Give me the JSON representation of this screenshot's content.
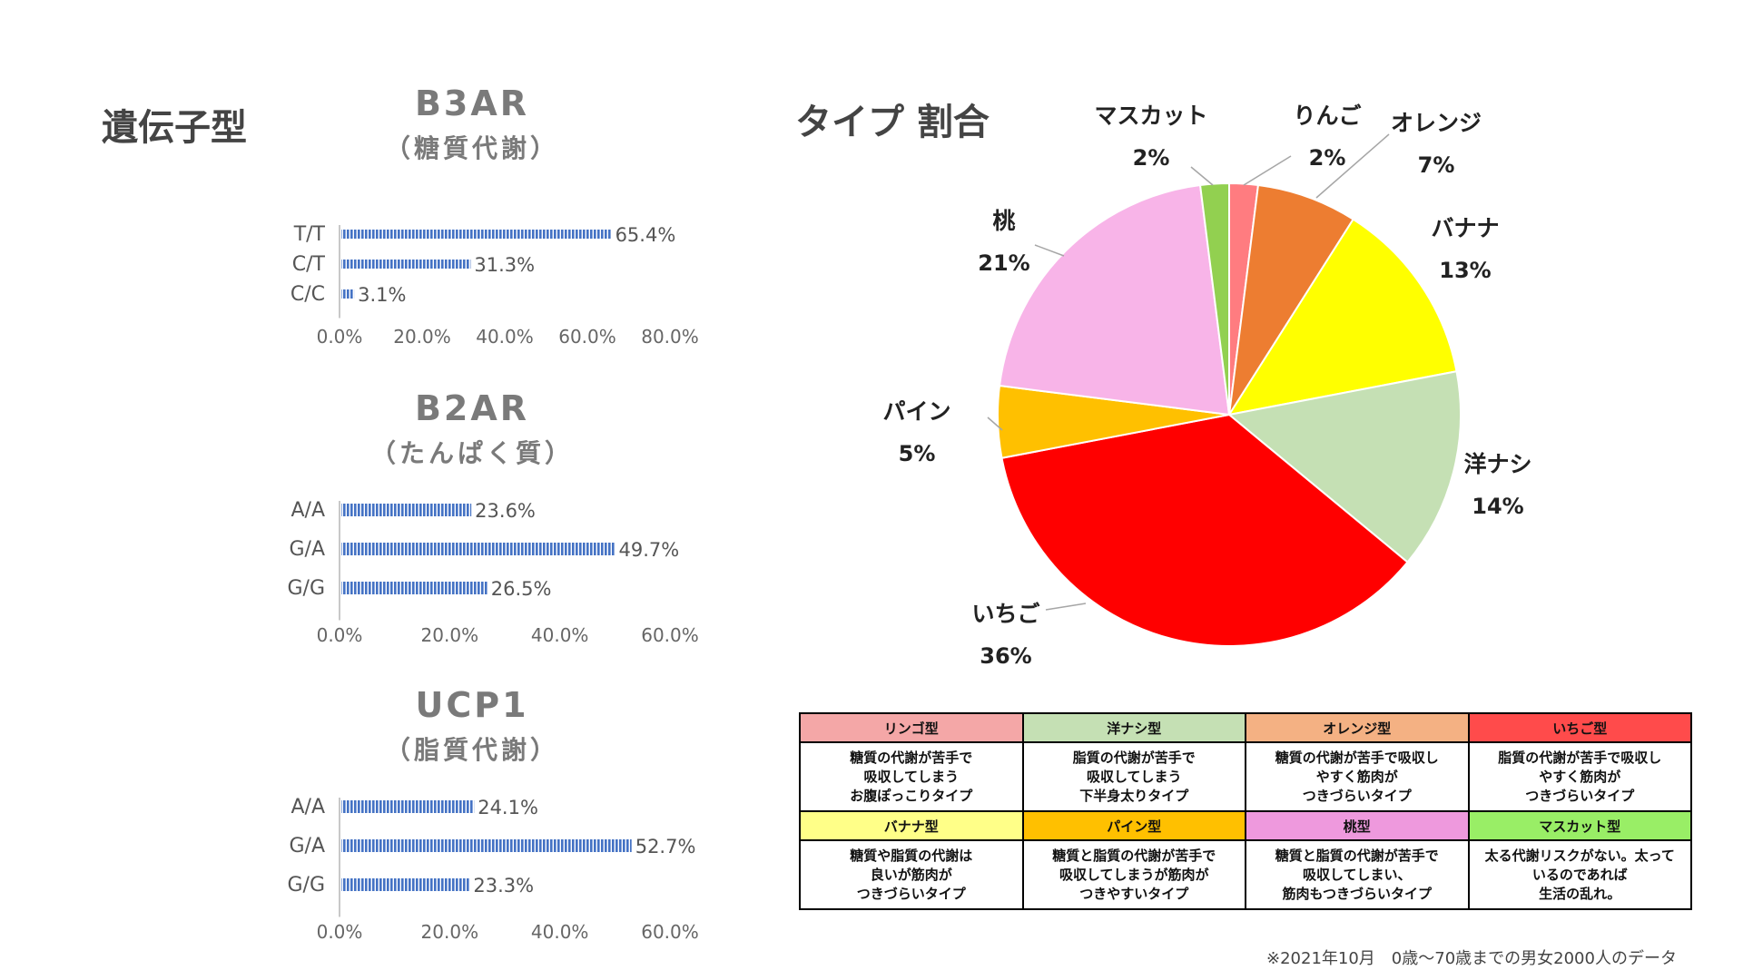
{
  "section_genotype": "遺伝子型",
  "section_type_ratio": "タイプ 割合",
  "bar_charts": [
    {
      "title": "B3AR",
      "subtitle": "（糖質代謝）",
      "categories": [
        "T/T",
        "C/T",
        "C/C"
      ],
      "labels": [
        "65.4%",
        "31.3%",
        "3.1%"
      ],
      "ticks": [
        "0.0%",
        "20.0%",
        "40.0%",
        "60.0%",
        "80.0%"
      ]
    },
    {
      "title": "B2AR",
      "subtitle": "（たんぱく質）",
      "categories": [
        "A/A",
        "G/A",
        "G/G"
      ],
      "labels": [
        "23.6%",
        "49.7%",
        "26.5%"
      ],
      "ticks": [
        "0.0%",
        "20.0%",
        "40.0%",
        "60.0%"
      ]
    },
    {
      "title": "UCP1",
      "subtitle": "（脂質代謝）",
      "categories": [
        "A/A",
        "G/A",
        "G/G"
      ],
      "labels": [
        "24.1%",
        "52.7%",
        "23.3%"
      ],
      "ticks": [
        "0.0%",
        "20.0%",
        "40.0%",
        "60.0%"
      ]
    }
  ],
  "chart_data": [
    {
      "type": "bar",
      "orientation": "horizontal",
      "title": "B3AR",
      "subtitle": "（糖質代謝）",
      "categories": [
        "T/T",
        "C/T",
        "C/C"
      ],
      "values": [
        65.4,
        31.3,
        3.1
      ],
      "xlim": [
        0,
        80
      ],
      "bar_color": "#4472c4"
    },
    {
      "type": "bar",
      "orientation": "horizontal",
      "title": "B2AR",
      "subtitle": "（たんぱく質）",
      "categories": [
        "A/A",
        "G/A",
        "G/G"
      ],
      "values": [
        23.6,
        49.7,
        26.5
      ],
      "xlim": [
        0,
        60
      ],
      "bar_color": "#4472c4"
    },
    {
      "type": "bar",
      "orientation": "horizontal",
      "title": "UCP1",
      "subtitle": "（脂質代謝）",
      "categories": [
        "A/A",
        "G/A",
        "G/G"
      ],
      "values": [
        24.1,
        52.7,
        23.3
      ],
      "xlim": [
        0,
        60
      ],
      "bar_color": "#4472c4"
    },
    {
      "type": "pie",
      "title": "タイプ 割合",
      "slices": [
        {
          "name": "りんご",
          "value": 2,
          "label": "2%",
          "color": "#ff7c80"
        },
        {
          "name": "オレンジ",
          "value": 7,
          "label": "7%",
          "color": "#ed7d31"
        },
        {
          "name": "バナナ",
          "value": 13,
          "label": "13%",
          "color": "#ffff00"
        },
        {
          "name": "洋ナシ",
          "value": 14,
          "label": "14%",
          "color": "#c5e0b4"
        },
        {
          "name": "いちご",
          "value": 36,
          "label": "36%",
          "color": "#ff0000"
        },
        {
          "name": "パイン",
          "value": 5,
          "label": "5%",
          "color": "#ffc000"
        },
        {
          "name": "桃",
          "value": 21,
          "label": "21%",
          "color": "#f8b4e8"
        },
        {
          "name": "マスカット",
          "value": 2,
          "label": "2%",
          "color": "#92d050"
        }
      ]
    }
  ],
  "legend_table": {
    "rows": [
      {
        "heads": [
          {
            "label": "リンゴ型",
            "color": "#f4a7a7"
          },
          {
            "label": "洋ナシ型",
            "color": "#c5e0b4"
          },
          {
            "label": "オレンジ型",
            "color": "#f4b183"
          },
          {
            "label": "いちご型",
            "color": "#ff4b4b"
          }
        ],
        "descs": [
          "糖質の代謝が苦手で\n吸収してしまう\nお腹ぽっこりタイプ",
          "脂質の代謝が苦手で\n吸収してしまう\n下半身太りタイプ",
          "糖質の代謝が苦手で吸収し\nやすく筋肉が\nつきづらいタイプ",
          "脂質の代謝が苦手で吸収し\nやすく筋肉が\nつきづらいタイプ"
        ]
      },
      {
        "heads": [
          {
            "label": "バナナ型",
            "color": "#ffff88"
          },
          {
            "label": "パイン型",
            "color": "#ffc000"
          },
          {
            "label": "桃型",
            "color": "#ee99dd"
          },
          {
            "label": "マスカット型",
            "color": "#99ee66"
          }
        ],
        "descs": [
          "糖質や脂質の代謝は\n良いが筋肉が\nつきづらいタイプ",
          "糖質と脂質の代謝が苦手で\n吸収してしまうが筋肉が\nつきやすいタイプ",
          "糖質と脂質の代謝が苦手で\n吸収してしまい、\n筋肉もつきづらいタイプ",
          "太る代謝リスクがない。太って\nいるのであれば\n生活の乱れ。"
        ]
      }
    ]
  },
  "footnote": "※2021年10月　0歳～70歳までの男女2000人のデータ"
}
